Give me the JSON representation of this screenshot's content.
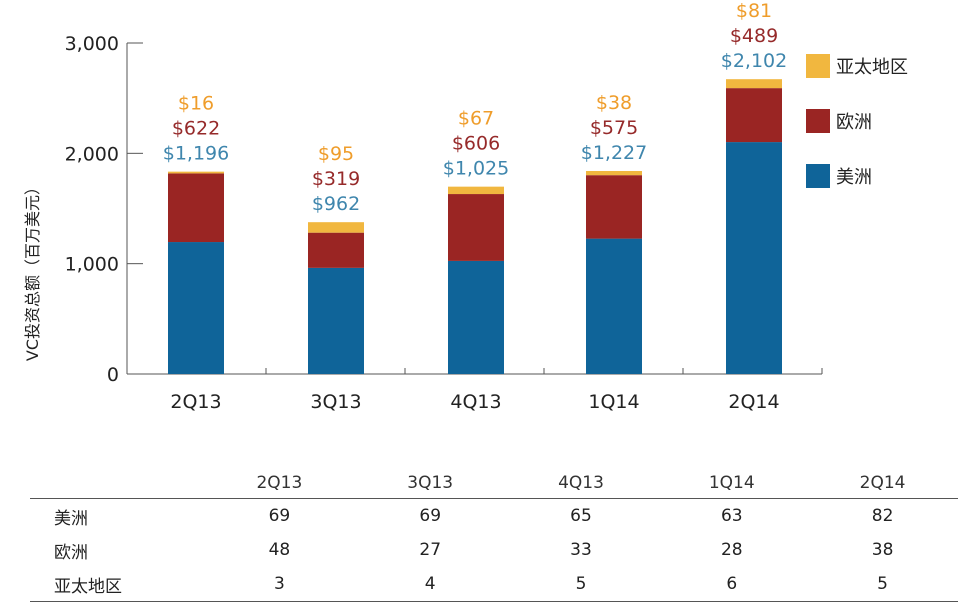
{
  "chart_data": {
    "type": "bar",
    "stacked": true,
    "ylabel": "VC投资总额（百万美元）",
    "ylim": [
      0,
      3000
    ],
    "yticks": [
      {
        "value": 0,
        "label": "0"
      },
      {
        "value": 1000,
        "label": "1,000"
      },
      {
        "value": 2000,
        "label": "2,000"
      },
      {
        "value": 3000,
        "label": "3,000"
      }
    ],
    "categories": [
      "2Q13",
      "3Q13",
      "4Q13",
      "1Q14",
      "2Q14"
    ],
    "series": [
      {
        "name": "美洲",
        "color": "#0f6499",
        "label_color": "#3f86ad",
        "values": [
          1196,
          962,
          1025,
          1227,
          2102
        ],
        "labels": [
          "$1,196",
          "$962",
          "$1,025",
          "$1,227",
          "$2,102"
        ]
      },
      {
        "name": "欧洲",
        "color": "#9a2523",
        "label_color": "#962a2a",
        "values": [
          622,
          319,
          606,
          575,
          489
        ],
        "labels": [
          "$622",
          "$319",
          "$606",
          "$575",
          "$489"
        ]
      },
      {
        "name": "亚太地区",
        "color": "#f1b73f",
        "label_color": "#ef9d2b",
        "values": [
          16,
          95,
          67,
          38,
          81
        ],
        "labels": [
          "$16",
          "$95",
          "$67",
          "$38",
          "$81"
        ]
      }
    ],
    "legend": [
      "亚太地区",
      "欧洲",
      "美洲"
    ]
  },
  "table": {
    "columns": [
      "2Q13",
      "3Q13",
      "4Q13",
      "1Q14",
      "2Q14"
    ],
    "rows": [
      {
        "label": "美洲",
        "values": [
          "69",
          "69",
          "65",
          "63",
          "82"
        ]
      },
      {
        "label": "欧洲",
        "values": [
          "48",
          "27",
          "33",
          "28",
          "38"
        ]
      },
      {
        "label": "亚太地区",
        "values": [
          "3",
          "4",
          "5",
          "6",
          "5"
        ]
      }
    ]
  }
}
